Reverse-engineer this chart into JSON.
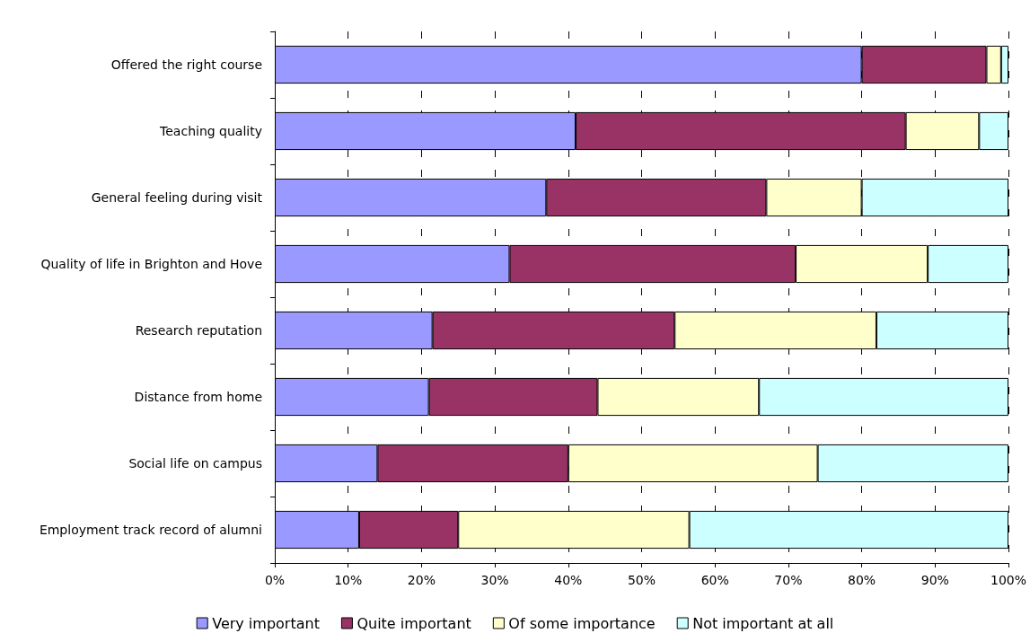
{
  "chart_data": {
    "type": "bar",
    "orientation": "horizontal",
    "stacked": true,
    "categories": [
      "Offered the right course",
      "Teaching quality",
      "General feeling during visit",
      "Quality of life in Brighton and Hove",
      "Research reputation",
      "Distance from home",
      "Social life on campus",
      "Employment track record of alumni"
    ],
    "series": [
      {
        "name": "Very important",
        "color": "#9999ff",
        "values": [
          80,
          41,
          37,
          32,
          21.5,
          21,
          14,
          11.5
        ]
      },
      {
        "name": "Quite important",
        "color": "#993366",
        "values": [
          17,
          45,
          30,
          39,
          33,
          23,
          26,
          13.5
        ]
      },
      {
        "name": "Of some importance",
        "color": "#ffffcc",
        "values": [
          2,
          10,
          13,
          18,
          27.5,
          22,
          34,
          31.5
        ]
      },
      {
        "name": "Not important at all",
        "color": "#ccffff",
        "values": [
          1,
          4,
          20,
          11,
          18,
          34,
          26,
          43.5
        ]
      }
    ],
    "xlim": [
      0,
      100
    ],
    "xticks": [
      {
        "value": 0,
        "label": "0%"
      },
      {
        "value": 10,
        "label": "10%"
      },
      {
        "value": 20,
        "label": "20%"
      },
      {
        "value": 30,
        "label": "30%"
      },
      {
        "value": 40,
        "label": "40%"
      },
      {
        "value": 50,
        "label": "50%"
      },
      {
        "value": 60,
        "label": "60%"
      },
      {
        "value": 70,
        "label": "70%"
      },
      {
        "value": 80,
        "label": "80%"
      },
      {
        "value": 90,
        "label": "90%"
      },
      {
        "value": 100,
        "label": "100%"
      }
    ],
    "grid": "x",
    "legend": "bottom"
  }
}
